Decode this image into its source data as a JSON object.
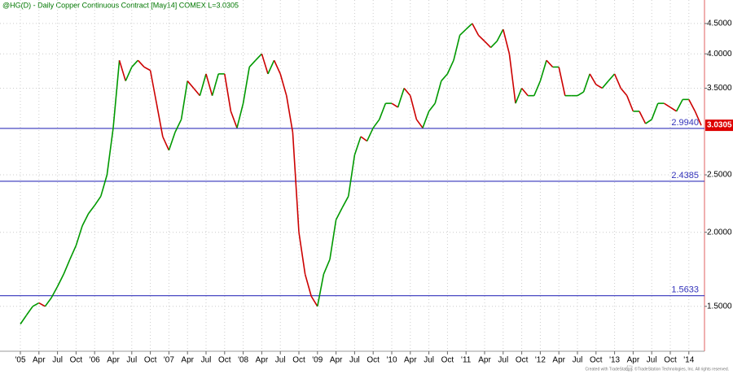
{
  "chart_data": {
    "type": "line",
    "title": "@HG(D) - Daily  Copper Continuous Contract [May14]  COMEX  L=3.0305",
    "footer": "Created with TradeStation. ©TradeStation Technologies, Inc. All rights reserved.",
    "categories": [
      "'05",
      null,
      null,
      "Apr",
      null,
      null,
      "Jul",
      null,
      null,
      "Oct",
      null,
      null,
      "'06",
      null,
      null,
      "Apr",
      null,
      null,
      "Jul",
      null,
      null,
      "Oct",
      null,
      null,
      "'07",
      null,
      null,
      "Apr",
      null,
      null,
      "Jul",
      null,
      null,
      "Oct",
      null,
      null,
      "'08",
      null,
      null,
      "Apr",
      null,
      null,
      "Jul",
      null,
      null,
      "Oct",
      null,
      null,
      "'09",
      null,
      null,
      "Apr",
      null,
      null,
      "Jul",
      null,
      null,
      "Oct",
      null,
      null,
      "'10",
      null,
      null,
      "Apr",
      null,
      null,
      "Jul",
      null,
      null,
      "Oct",
      null,
      null,
      "'11",
      null,
      null,
      "Apr",
      null,
      null,
      "Jul",
      null,
      null,
      "Oct",
      null,
      null,
      "'12",
      null,
      null,
      "Apr",
      null,
      null,
      "Jul",
      null,
      null,
      "Oct",
      null,
      null,
      "'13",
      null,
      null,
      "Apr",
      null,
      null,
      "Jul",
      null,
      null,
      "Oct",
      null,
      null,
      "'14",
      null,
      null
    ],
    "values": [
      1.4,
      1.45,
      1.5,
      1.52,
      1.5,
      1.55,
      1.62,
      1.7,
      1.8,
      1.9,
      2.05,
      2.15,
      2.22,
      2.3,
      2.5,
      3.0,
      3.9,
      3.6,
      3.8,
      3.9,
      3.8,
      3.75,
      3.3,
      2.9,
      2.75,
      2.95,
      3.1,
      3.6,
      3.5,
      3.4,
      3.7,
      3.4,
      3.7,
      3.7,
      3.2,
      3.0,
      3.3,
      3.8,
      3.9,
      4.0,
      3.7,
      3.9,
      3.7,
      3.4,
      2.95,
      2.0,
      1.7,
      1.56,
      1.5,
      1.7,
      1.8,
      2.1,
      2.2,
      2.3,
      2.7,
      2.9,
      2.85,
      3.0,
      3.1,
      3.3,
      3.3,
      3.25,
      3.5,
      3.4,
      3.1,
      3.0,
      3.2,
      3.3,
      3.6,
      3.7,
      3.9,
      4.3,
      4.4,
      4.5,
      4.3,
      4.2,
      4.1,
      4.2,
      4.4,
      4.0,
      3.3,
      3.5,
      3.4,
      3.4,
      3.6,
      3.9,
      3.8,
      3.8,
      3.4,
      3.4,
      3.4,
      3.45,
      3.7,
      3.55,
      3.5,
      3.6,
      3.7,
      3.5,
      3.4,
      3.2,
      3.2,
      3.05,
      3.1,
      3.3,
      3.3,
      3.25,
      3.2,
      3.35,
      3.35,
      3.2,
      3.03
    ],
    "up_color": "#009900",
    "down_color": "#cc0000",
    "level_color": "#3333bb",
    "last_color": "#dd0000",
    "log_scale": true,
    "grid": true,
    "ylim": [
      1.26,
      4.93
    ],
    "yticks": [
      {
        "value": 1.5,
        "label": "1.5000"
      },
      {
        "value": 2.0,
        "label": "2.0000"
      },
      {
        "value": 2.5,
        "label": "2.5000"
      },
      {
        "value": 3.5,
        "label": "3.5000"
      },
      {
        "value": 4.0,
        "label": "4.0000"
      },
      {
        "value": 4.5,
        "label": "4.5000"
      }
    ],
    "levels": [
      {
        "value": 2.994,
        "label": "2.9940"
      },
      {
        "value": 2.4385,
        "label": "2.4385"
      },
      {
        "value": 1.5633,
        "label": "1.5633"
      }
    ],
    "last": {
      "value": 3.0305,
      "label": "3.0305"
    }
  }
}
